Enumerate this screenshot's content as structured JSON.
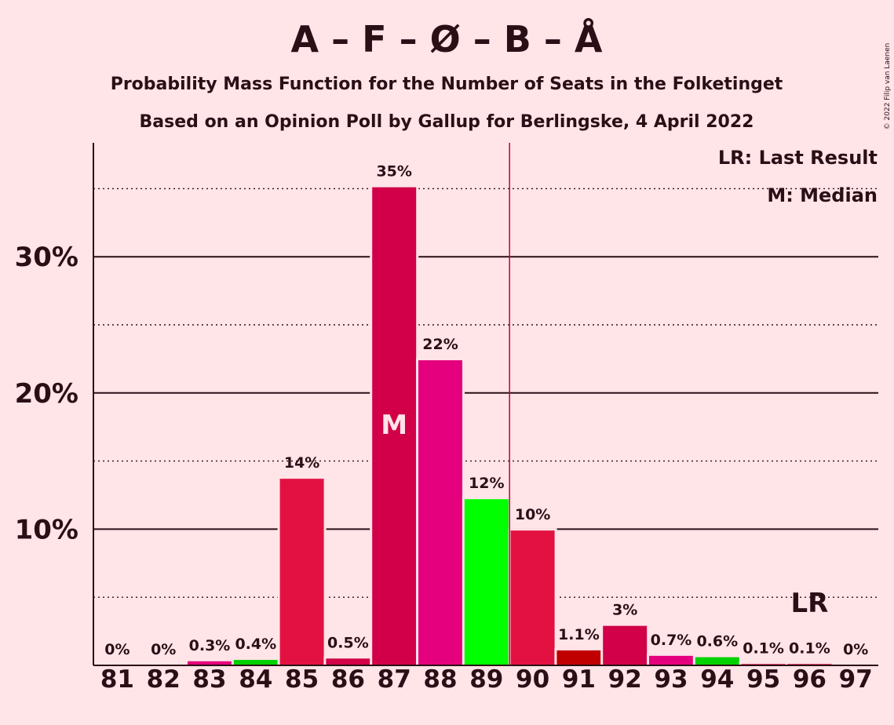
{
  "copyright": "© 2022 Filip van Laenen",
  "chart_data": {
    "type": "bar",
    "title": "A – F – Ø – B – Å",
    "subtitle_1": "Probability Mass Function for the Number of Seats in the Folketinget",
    "subtitle_2": "Based on an Opinion Poll by Gallup for Berlingske, 4 April 2022",
    "categories": [
      "81",
      "82",
      "83",
      "84",
      "85",
      "86",
      "87",
      "88",
      "89",
      "90",
      "91",
      "92",
      "93",
      "94",
      "95",
      "96",
      "97"
    ],
    "values": [
      0,
      0,
      0.3,
      0.4,
      13.7,
      0.5,
      35.1,
      22.4,
      12.2,
      9.9,
      1.1,
      2.9,
      0.7,
      0.6,
      0.1,
      0.1,
      0
    ],
    "value_labels": [
      "0%",
      "0%",
      "0.3%",
      "0.4%",
      "14%",
      "0.5%",
      "35%",
      "22%",
      "12%",
      "10%",
      "1.1%",
      "3%",
      "0.7%",
      "0.6%",
      "0.1%",
      "0.1%",
      "0%"
    ],
    "bar_colors": [
      "#E31141",
      "#E31141",
      "#E5007D",
      "#00D200",
      "#E31141",
      "#D10048",
      "#D10048",
      "#E5007D",
      "#00FF00",
      "#E31141",
      "#C00000",
      "#D10048",
      "#E5007D",
      "#00D200",
      "#E31141",
      "#E31141",
      "#E31141"
    ],
    "ylim": [
      0,
      38
    ],
    "y_ticks": [
      {
        "value": 10,
        "label": "10%"
      },
      {
        "value": 20,
        "label": "20%"
      },
      {
        "value": 30,
        "label": "30%"
      }
    ],
    "minor_gridlines": [
      5,
      15,
      25,
      35
    ],
    "median": {
      "seat": "87",
      "label": "M"
    },
    "last_result": {
      "seat": "96",
      "label": "LR"
    },
    "majority_line_after": "89",
    "majority_color": "#C4003E",
    "legend": [
      "LR: Last Result",
      "M: Median"
    ],
    "legend_position": "top-right"
  }
}
